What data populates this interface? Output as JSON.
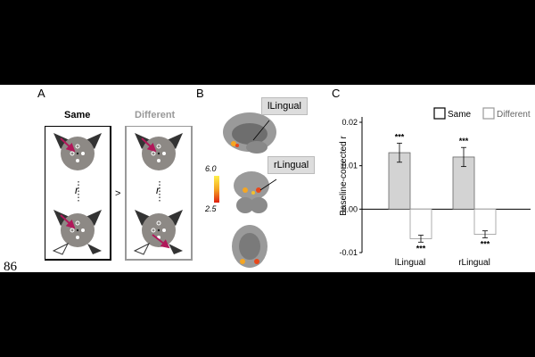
{
  "page_number": "86",
  "panel_a": {
    "letter": "A",
    "same_label": "Same",
    "different_label": "Different",
    "greater_than": ">",
    "r_label": "r"
  },
  "panel_b": {
    "letter": "B",
    "roi_left": "lLingual",
    "roi_right": "rLingual",
    "scale_max": "6.0",
    "scale_min": "2.5"
  },
  "panel_c": {
    "letter": "C",
    "legend_same": "Same",
    "legend_different": "Different"
  },
  "chart_data": {
    "type": "bar",
    "categories": [
      "lLingual",
      "rLingual"
    ],
    "series": [
      {
        "name": "Same",
        "values": [
          0.013,
          0.012
        ],
        "errors": [
          0.0022,
          0.0022
        ],
        "sig": [
          "***",
          "***"
        ],
        "color": "#d3d3d3"
      },
      {
        "name": "Different",
        "values": [
          -0.0068,
          -0.0058
        ],
        "errors": [
          0.0008,
          0.0008
        ],
        "sig": [
          "***",
          "***"
        ],
        "color": "#ffffff"
      }
    ],
    "ylabel": "Baseline-corrected r",
    "ylim": [
      -0.01,
      0.02
    ],
    "yticks": [
      "0.02",
      "0.01",
      "0.00",
      "-0.01"
    ],
    "legend_position": "top"
  },
  "colors": {
    "arrow": "#b0185a",
    "disc": "#8d8985",
    "same_frame": "#000000",
    "different_frame": "#999999"
  }
}
